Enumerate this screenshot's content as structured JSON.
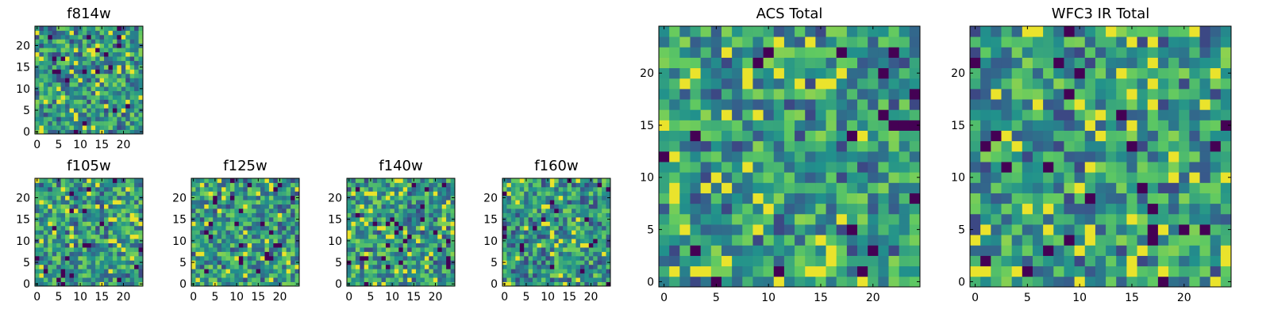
{
  "figure": {
    "colormap": [
      "#440154",
      "#3b528b",
      "#21918c",
      "#5ec962",
      "#fde725"
    ],
    "background": "#ffffff"
  },
  "chart_data": [
    {
      "id": "f814w",
      "type": "heatmap",
      "title": "f814w",
      "grid_size": 25,
      "xlim": [
        -0.5,
        24.5
      ],
      "ylim": [
        -0.5,
        24.5
      ],
      "x_ticks": [
        0,
        5,
        10,
        15,
        20
      ],
      "y_ticks": [
        0,
        5,
        10,
        15,
        20
      ],
      "x_tick_labels": [
        "0",
        "5",
        "10",
        "15",
        "20"
      ],
      "y_tick_labels": [
        "0",
        "5",
        "10",
        "15",
        "20"
      ],
      "grid": false,
      "seed": 11
    },
    {
      "id": "f105w",
      "type": "heatmap",
      "title": "f105w",
      "grid_size": 25,
      "xlim": [
        -0.5,
        24.5
      ],
      "ylim": [
        -0.5,
        24.5
      ],
      "x_ticks": [
        0,
        5,
        10,
        15,
        20
      ],
      "y_ticks": [
        0,
        5,
        10,
        15,
        20
      ],
      "x_tick_labels": [
        "0",
        "5",
        "10",
        "15",
        "20"
      ],
      "y_tick_labels": [
        "0",
        "5",
        "10",
        "15",
        "20"
      ],
      "grid": false,
      "seed": 23
    },
    {
      "id": "f125w",
      "type": "heatmap",
      "title": "f125w",
      "grid_size": 25,
      "xlim": [
        -0.5,
        24.5
      ],
      "ylim": [
        -0.5,
        24.5
      ],
      "x_ticks": [
        0,
        5,
        10,
        15,
        20
      ],
      "y_ticks": [
        0,
        5,
        10,
        15,
        20
      ],
      "x_tick_labels": [
        "0",
        "5",
        "10",
        "15",
        "20"
      ],
      "y_tick_labels": [
        "0",
        "5",
        "10",
        "15",
        "20"
      ],
      "grid": false,
      "seed": 37
    },
    {
      "id": "f140w",
      "type": "heatmap",
      "title": "f140w",
      "grid_size": 25,
      "xlim": [
        -0.5,
        24.5
      ],
      "ylim": [
        -0.5,
        24.5
      ],
      "x_ticks": [
        0,
        5,
        10,
        15,
        20
      ],
      "y_ticks": [
        0,
        5,
        10,
        15,
        20
      ],
      "x_tick_labels": [
        "0",
        "5",
        "10",
        "15",
        "20"
      ],
      "y_tick_labels": [
        "0",
        "5",
        "10",
        "15",
        "20"
      ],
      "grid": false,
      "seed": 41
    },
    {
      "id": "f160w",
      "type": "heatmap",
      "title": "f160w",
      "grid_size": 25,
      "xlim": [
        -0.5,
        24.5
      ],
      "ylim": [
        -0.5,
        24.5
      ],
      "x_ticks": [
        0,
        5,
        10,
        15,
        20
      ],
      "y_ticks": [
        0,
        5,
        10,
        15,
        20
      ],
      "x_tick_labels": [
        "0",
        "5",
        "10",
        "15",
        "20"
      ],
      "y_tick_labels": [
        "0",
        "5",
        "10",
        "15",
        "20"
      ],
      "grid": false,
      "seed": 53
    },
    {
      "id": "acs-total",
      "type": "heatmap",
      "title": "ACS Total",
      "grid_size": 25,
      "xlim": [
        -0.5,
        24.5
      ],
      "ylim": [
        -0.5,
        24.5
      ],
      "x_ticks": [
        0,
        5,
        10,
        15,
        20
      ],
      "y_ticks": [
        0,
        5,
        10,
        15,
        20
      ],
      "x_tick_labels": [
        "0",
        "5",
        "10",
        "15",
        "20"
      ],
      "y_tick_labels": [
        "0",
        "5",
        "10",
        "15",
        "20"
      ],
      "grid": false,
      "seed": 67
    },
    {
      "id": "wfc3-ir-total",
      "type": "heatmap",
      "title": "WFC3 IR Total",
      "grid_size": 25,
      "xlim": [
        -0.5,
        24.5
      ],
      "ylim": [
        -0.5,
        24.5
      ],
      "x_ticks": [
        0,
        5,
        10,
        15,
        20
      ],
      "y_ticks": [
        0,
        5,
        10,
        15,
        20
      ],
      "x_tick_labels": [
        "0",
        "5",
        "10",
        "15",
        "20"
      ],
      "y_tick_labels": [
        "0",
        "5",
        "10",
        "15",
        "20"
      ],
      "grid": false,
      "seed": 79
    }
  ]
}
